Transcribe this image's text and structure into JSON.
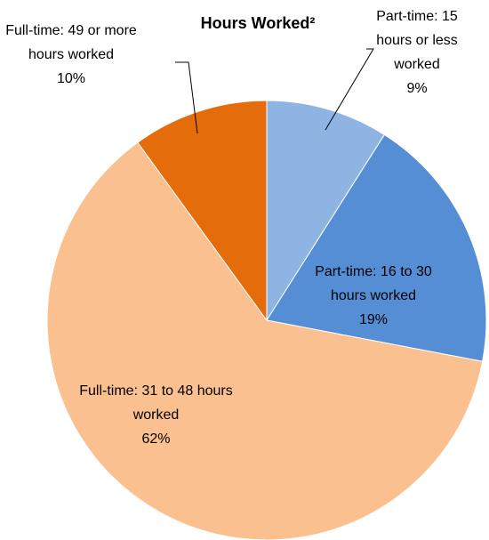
{
  "chart_data": {
    "type": "pie",
    "title": "Hours Worked²",
    "categories": [
      "Part-time: 15 hours or less worked",
      "Part-time: 16 to 30 hours worked",
      "Full-time: 31 to 48 hours worked",
      "Full-time: 49 or more hours worked"
    ],
    "values": [
      9,
      19,
      62,
      10
    ],
    "value_labels": [
      "9%",
      "19%",
      "62%",
      "10%"
    ],
    "colors": [
      "#8eb4e3",
      "#558ed5",
      "#fac090",
      "#e46c0a"
    ]
  }
}
